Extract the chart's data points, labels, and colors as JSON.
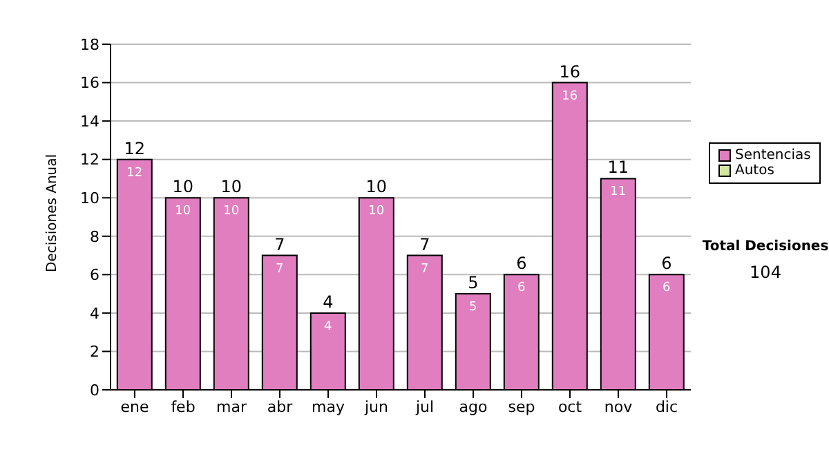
{
  "chart_data": {
    "type": "bar",
    "ylabel": "Decisiones Anual",
    "categories": [
      "ene",
      "feb",
      "mar",
      "abr",
      "may",
      "jun",
      "jul",
      "ago",
      "sep",
      "oct",
      "nov",
      "dic"
    ],
    "series": [
      {
        "name": "Sentencias",
        "color": "#e07ec0",
        "values": [
          12,
          10,
          10,
          7,
          4,
          10,
          7,
          5,
          6,
          16,
          11,
          6
        ],
        "value_labels": [
          "12",
          "10",
          "10",
          "7",
          "4",
          "10",
          "7",
          "5",
          "6",
          "16",
          "11",
          "6"
        ]
      },
      {
        "name": "Autos",
        "color": "#d4e6a0",
        "values": [
          0,
          0,
          0,
          0,
          0,
          0,
          0,
          0,
          0,
          0,
          0,
          0
        ]
      }
    ],
    "stacked": true,
    "totals": [
      "12",
      "10",
      "10",
      "7",
      "4",
      "10",
      "7",
      "5",
      "6",
      "16",
      "11",
      "6"
    ],
    "ylim": [
      0,
      18
    ],
    "yticks": [
      0,
      2,
      4,
      6,
      8,
      10,
      12,
      14,
      16,
      18
    ],
    "grid": "y",
    "legend": "right",
    "annotations": [
      "Total Decisiones",
      "104"
    ]
  }
}
